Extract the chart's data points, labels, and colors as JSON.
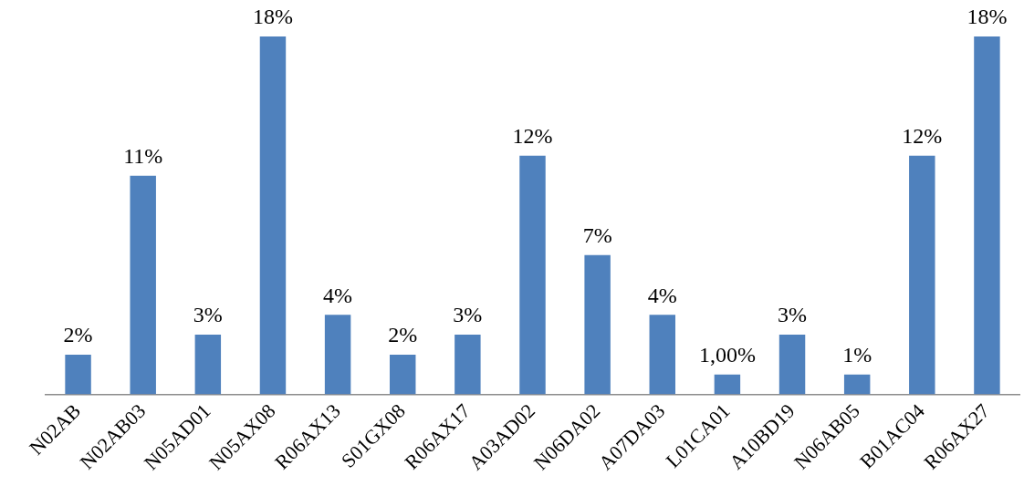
{
  "chart_data": {
    "type": "bar",
    "categories": [
      "N02AB",
      "N02AB03",
      "N05AD01",
      "N05AX08",
      "R06AX13",
      "S01GX08",
      "R06AX17",
      "A03AD02",
      "N06DA02",
      "A07DA03",
      "L01CA01",
      "A10BD19",
      "N06AB05",
      "B01AC04",
      "R06AX27"
    ],
    "values": [
      2,
      11,
      3,
      18,
      4,
      2,
      3,
      12,
      7,
      4,
      1,
      3,
      1,
      12,
      18
    ],
    "value_labels": [
      "2%",
      "11%",
      "3%",
      "18%",
      "4%",
      "2%",
      "3%",
      "12%",
      "7%",
      "4%",
      "1,00%",
      "3%",
      "1%",
      "12%",
      "18%"
    ],
    "color": "#4f81bd",
    "grid": false,
    "legend": false
  }
}
